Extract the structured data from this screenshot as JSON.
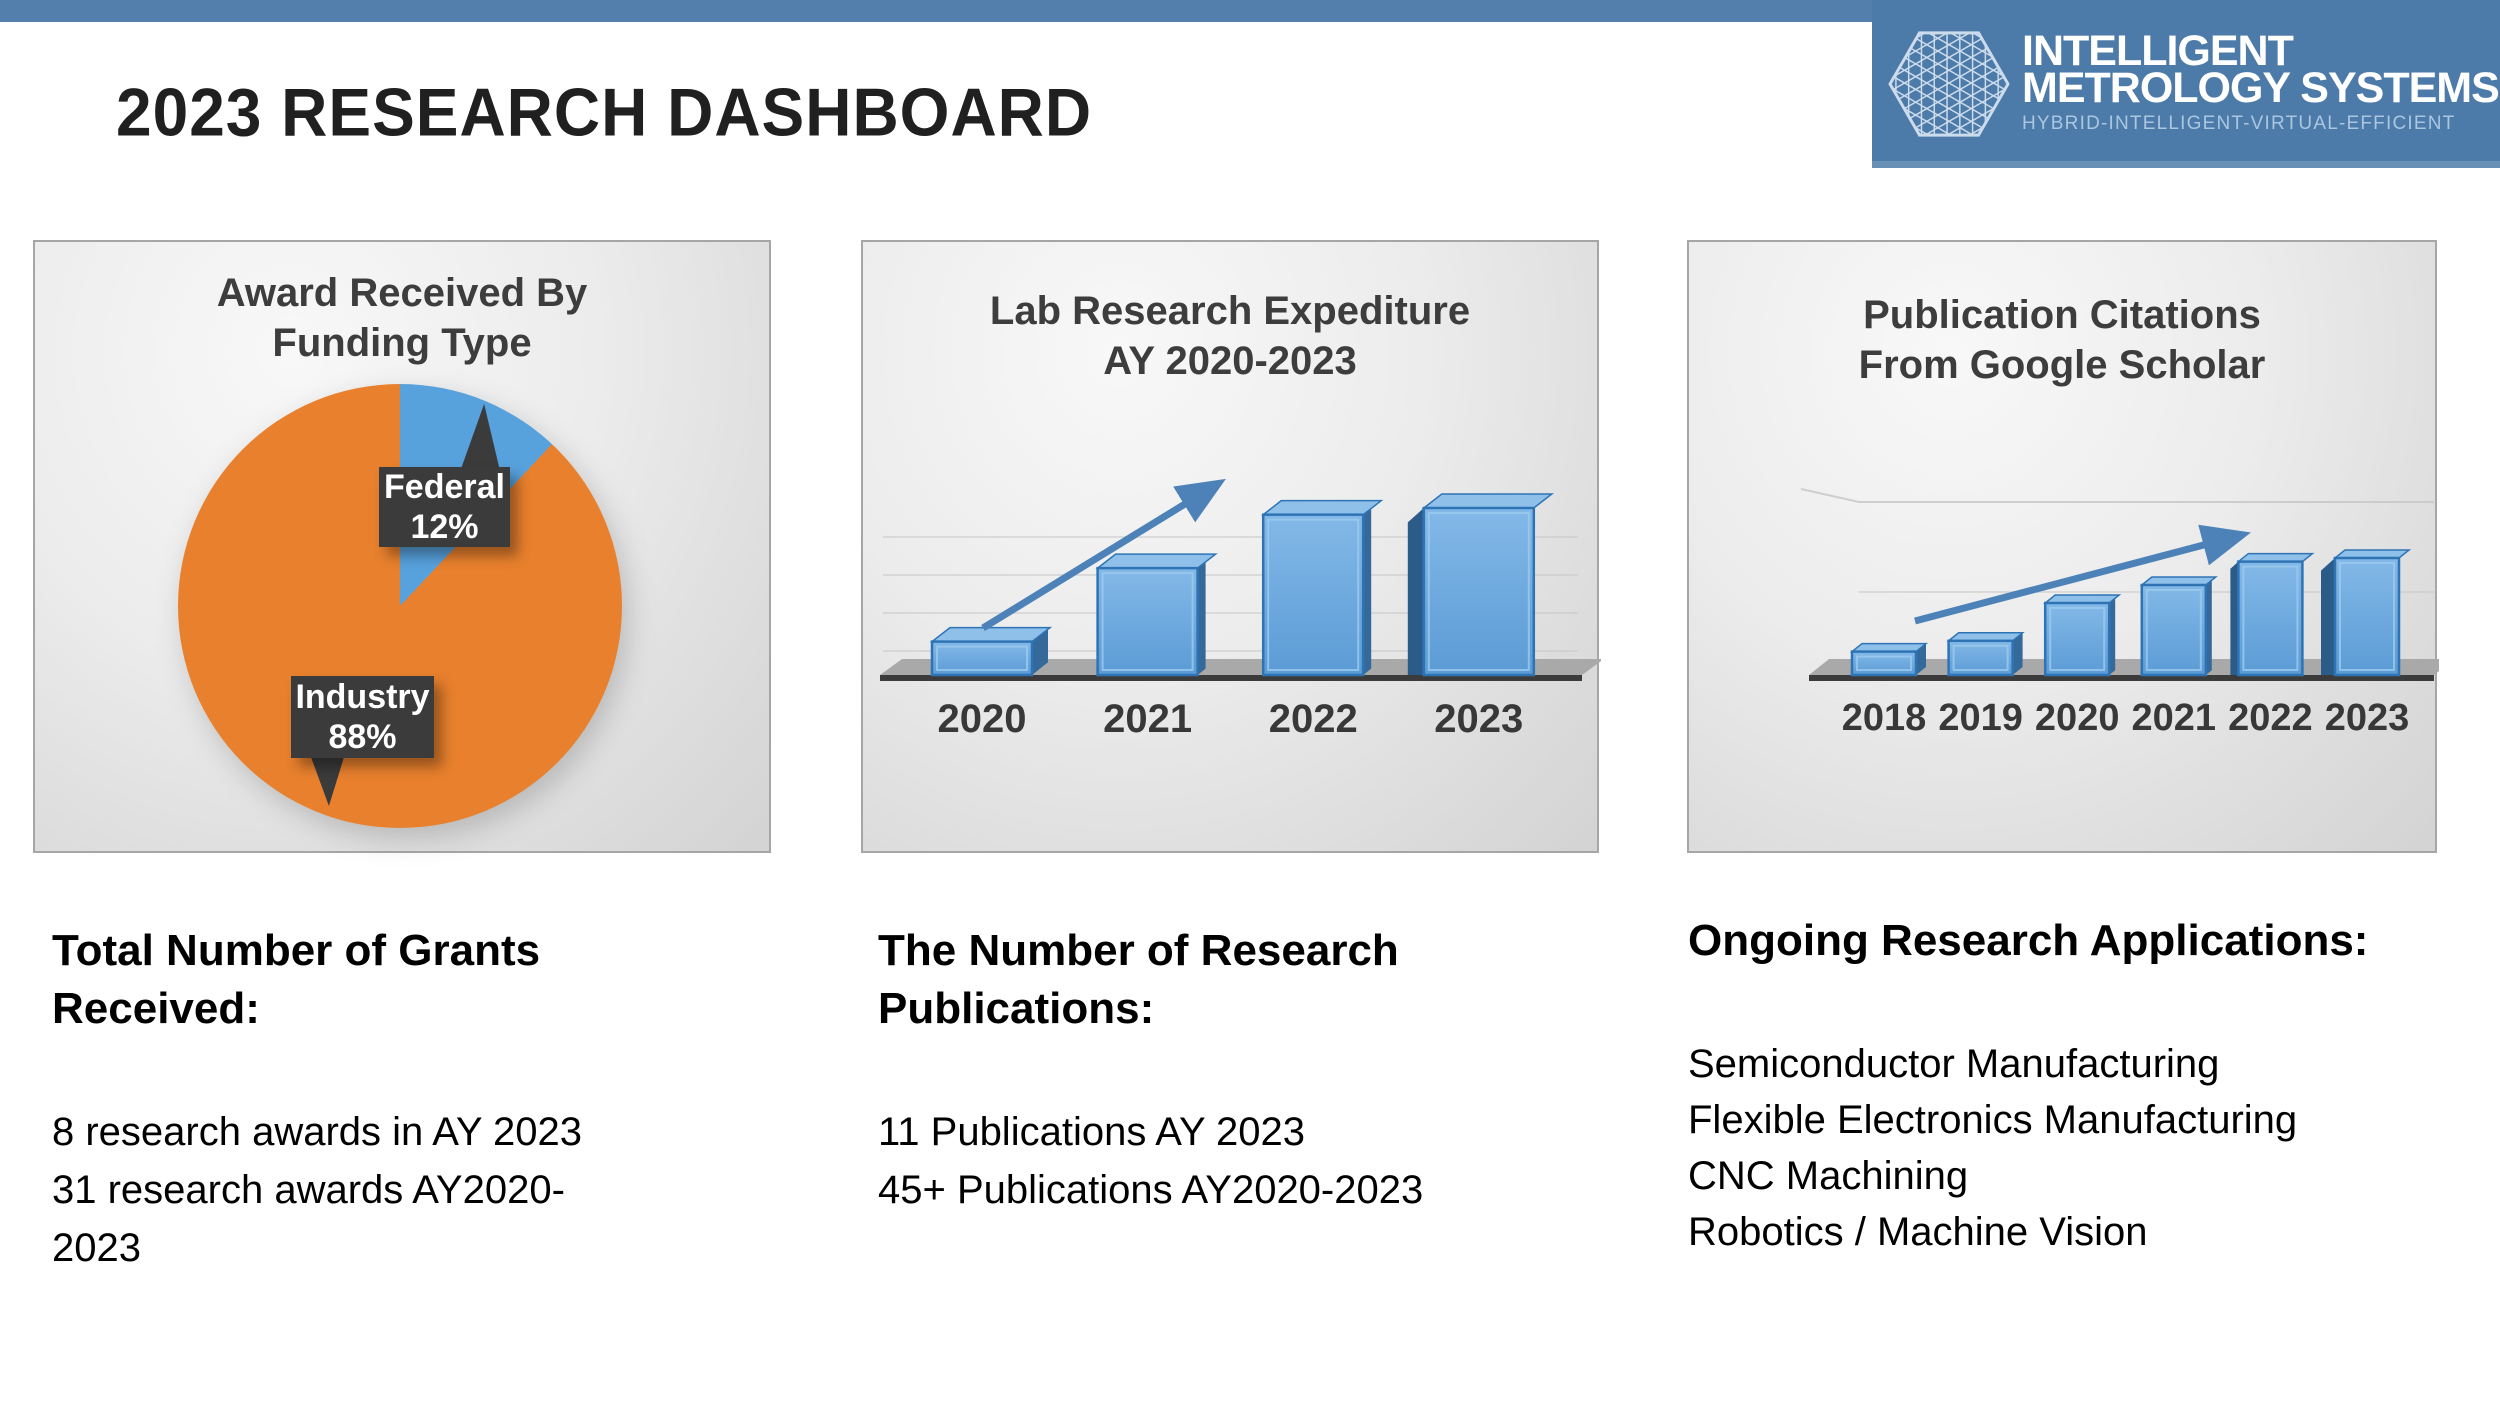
{
  "header": {
    "title": "2023 RESEARCH DASHBOARD"
  },
  "logo": {
    "icon": "hexagon-lattice-icon",
    "line1": "INTELLIGENT",
    "line2": "METROLOGY SYSTEMS",
    "tagline": "HYBRID-INTELLIGENT-VIRTUAL-EFFICIENT",
    "bg_color": "#4d7ba9"
  },
  "accent_colors": {
    "top_bar": "#527fab",
    "bar_blue": "#5B9BD5",
    "bar_border_blue": "#2E74B5",
    "pie_orange": "#E8802D",
    "pie_blue": "#57A1DC",
    "callout_dark": "#3b3b3b",
    "arrow_blue": "#4d82b8"
  },
  "chart_data": [
    {
      "type": "pie",
      "title_lines": [
        "Award Received By",
        "Funding Type"
      ],
      "slices": [
        {
          "label": "Federal",
          "value_pct": 12,
          "value_label": "12%",
          "color": "#57A1DC"
        },
        {
          "label": "Industry",
          "value_pct": 88,
          "value_label": "88%",
          "color": "#E8802D"
        }
      ],
      "start_angle": "12-o'clock",
      "direction": "clockwise",
      "label_style": "dark callout boxes with pointer tails"
    },
    {
      "type": "bar",
      "title_lines": [
        "Lab Research Expediture",
        "AY 2020-2023"
      ],
      "categories": [
        "2020",
        "2021",
        "2022",
        "2023"
      ],
      "values_relative": [
        0.2,
        0.64,
        0.96,
        1.0
      ],
      "y_axis_labels": "none shown",
      "style": "3d-blue-bars-on-gray-floor",
      "annotation": "upward trend arrow"
    },
    {
      "type": "bar",
      "title_lines": [
        "Publication Citations",
        "From Google Scholar"
      ],
      "categories": [
        "2018",
        "2019",
        "2020",
        "2021",
        "2022",
        "2023"
      ],
      "values": [
        130,
        190,
        400,
        500,
        630,
        650
      ],
      "yticks": [
        0,
        500,
        1000
      ],
      "ylim": [
        0,
        1050
      ],
      "style": "3d-blue-bars-on-gray-floor",
      "annotation": "upward trend arrow"
    }
  ],
  "notes": [
    {
      "heading": "Total Number of Grants Received:",
      "lines": [
        "8 research awards in AY 2023",
        "31 research awards AY2020-2023"
      ]
    },
    {
      "heading": "The Number of Research Publications:",
      "lines": [
        "11 Publications AY 2023",
        "45+ Publications AY2020-2023"
      ]
    },
    {
      "heading": "Ongoing Research Applications:",
      "lines": [
        "Semiconductor Manufacturing",
        "Flexible Electronics Manufacturing",
        "CNC Machining",
        "Robotics / Machine Vision"
      ]
    }
  ]
}
